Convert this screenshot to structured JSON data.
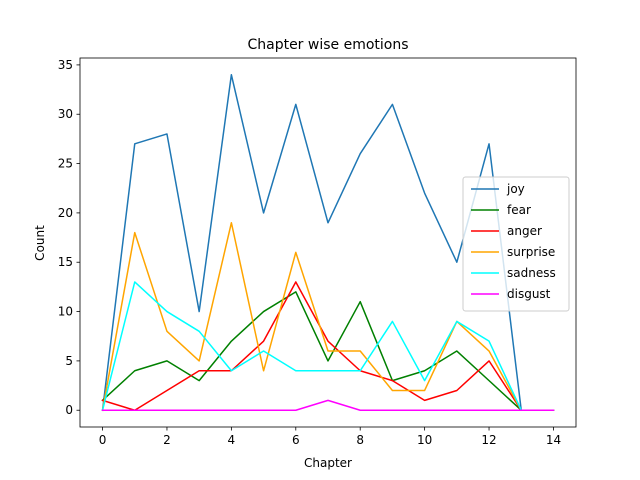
{
  "chart_data": {
    "type": "line",
    "title": "Chapter wise emotions",
    "xlabel": "Chapter",
    "ylabel": "Count",
    "xlim": [
      -0.7,
      14.7
    ],
    "ylim": [
      -1.7,
      35.7
    ],
    "xticks": [
      0,
      2,
      4,
      6,
      8,
      10,
      12,
      14
    ],
    "yticks": [
      0,
      5,
      10,
      15,
      20,
      25,
      30,
      35
    ],
    "grid": false,
    "legend_position": "center-right",
    "x": [
      0,
      1,
      2,
      3,
      4,
      5,
      6,
      7,
      8,
      9,
      10,
      11,
      12,
      13,
      14
    ],
    "series": [
      {
        "name": "joy",
        "color": "#1f77b4",
        "values": [
          0,
          27,
          28,
          10,
          34,
          20,
          31,
          19,
          26,
          31,
          22,
          15,
          27,
          0,
          0
        ]
      },
      {
        "name": "fear",
        "color": "#008000",
        "values": [
          1,
          4,
          5,
          3,
          7,
          10,
          12,
          5,
          11,
          3,
          4,
          6,
          3,
          0,
          0
        ]
      },
      {
        "name": "anger",
        "color": "#ff0000",
        "values": [
          1,
          0,
          2,
          4,
          4,
          7,
          13,
          7,
          4,
          3,
          1,
          2,
          5,
          0,
          0
        ]
      },
      {
        "name": "surprise",
        "color": "#ffa500",
        "values": [
          0,
          18,
          8,
          5,
          19,
          4,
          16,
          6,
          6,
          2,
          2,
          9,
          6,
          0,
          0
        ]
      },
      {
        "name": "sadness",
        "color": "#00ffff",
        "values": [
          0,
          13,
          10,
          8,
          4,
          6,
          4,
          4,
          4,
          9,
          3,
          9,
          7,
          0,
          0
        ]
      },
      {
        "name": "disgust",
        "color": "#ff00ff",
        "values": [
          0,
          0,
          0,
          0,
          0,
          0,
          0,
          1,
          0,
          0,
          0,
          0,
          0,
          0,
          0
        ]
      }
    ]
  }
}
